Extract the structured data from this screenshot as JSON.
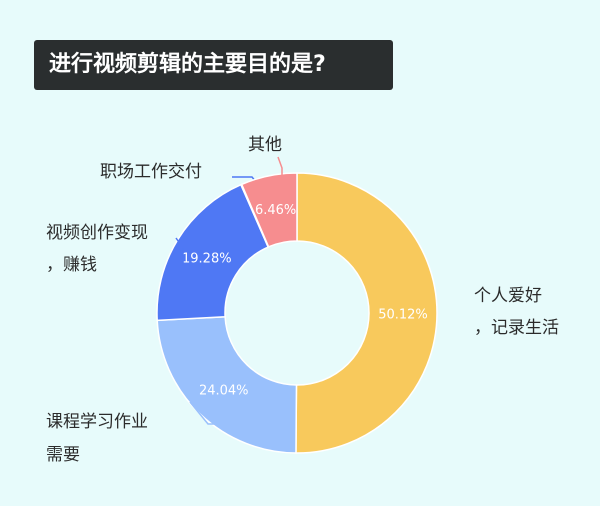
{
  "header": {
    "title": "进行视频剪辑的主要目的是?"
  },
  "chart_data": {
    "type": "pie",
    "variant": "donut",
    "title": "进行视频剪辑的主要目的是?",
    "categories": [
      "个人爱好，记录生活",
      "课程学习作业需要",
      "视频创作变现，赚钱",
      "职场工作交付",
      "其他"
    ],
    "value_labels": [
      "50.12%",
      "24.04%",
      "19.28%",
      "",
      "6.46%"
    ],
    "values": [
      50.12,
      24.04,
      19.28,
      0.1,
      6.46
    ],
    "unit": "%",
    "colors": [
      "#f8c95c",
      "#99c0fc",
      "#4f78f4",
      "#4f78f4",
      "#f68d8f"
    ]
  }
}
